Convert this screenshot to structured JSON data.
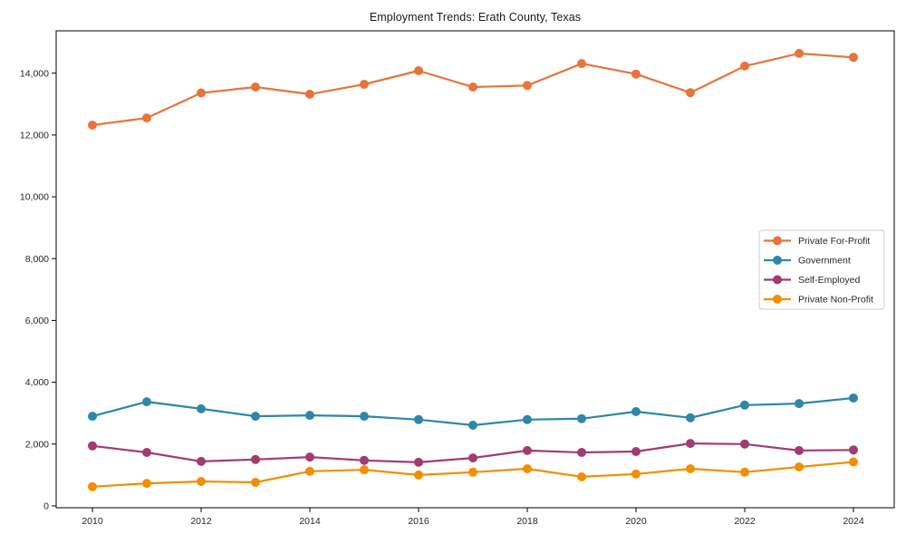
{
  "chart_data": {
    "type": "line",
    "title": "Employment Trends: Erath County, Texas",
    "xlabel": "",
    "ylabel": "",
    "grid": false,
    "background": "#ffffff",
    "axis_color": "#000000",
    "tick_label_color": "#262626",
    "x": [
      2010,
      2011,
      2012,
      2013,
      2014,
      2015,
      2016,
      2017,
      2018,
      2019,
      2020,
      2021,
      2022,
      2023,
      2024
    ],
    "xlim": [
      2009.333,
      2024.75
    ],
    "ylim": [
      -60,
      15370
    ],
    "xticks": [
      {
        "value": 2010,
        "label": "2010"
      },
      {
        "value": 2012,
        "label": "2012"
      },
      {
        "value": 2014,
        "label": "2014"
      },
      {
        "value": 2016,
        "label": "2016"
      },
      {
        "value": 2018,
        "label": "2018"
      },
      {
        "value": 2020,
        "label": "2020"
      },
      {
        "value": 2022,
        "label": "2022"
      },
      {
        "value": 2024,
        "label": "2024"
      }
    ],
    "yticks": [
      {
        "value": 0,
        "label": "0"
      },
      {
        "value": 2000,
        "label": "2,000"
      },
      {
        "value": 4000,
        "label": "4,000"
      },
      {
        "value": 6000,
        "label": "6,000"
      },
      {
        "value": 8000,
        "label": "8,000"
      },
      {
        "value": 10000,
        "label": "10,000"
      },
      {
        "value": 12000,
        "label": "12,000"
      },
      {
        "value": 14000,
        "label": "14,000"
      }
    ],
    "legend": {
      "position": "center-right",
      "border_color": "#cccccc",
      "background": "#ffffff",
      "text_color": "#1a1a1a"
    },
    "series": [
      {
        "name": "Private For-Profit",
        "color": "#E8743B",
        "marker": "circle",
        "values": [
          12320,
          12550,
          13360,
          13550,
          13320,
          13640,
          14080,
          13550,
          13600,
          14310,
          13970,
          13370,
          14230,
          14640,
          14510
        ]
      },
      {
        "name": "Government",
        "color": "#2E86AB",
        "marker": "circle",
        "values": [
          2900,
          3370,
          3140,
          2900,
          2930,
          2900,
          2790,
          2610,
          2790,
          2820,
          3050,
          2850,
          3260,
          3310,
          3490
        ]
      },
      {
        "name": "Self-Employed",
        "color": "#A23B72",
        "marker": "circle",
        "values": [
          1940,
          1730,
          1440,
          1500,
          1580,
          1470,
          1410,
          1550,
          1790,
          1730,
          1760,
          2020,
          2000,
          1790,
          1810
        ]
      },
      {
        "name": "Private Non-Profit",
        "color": "#F18F01",
        "marker": "circle",
        "values": [
          620,
          730,
          790,
          760,
          1120,
          1170,
          1000,
          1090,
          1200,
          940,
          1030,
          1200,
          1090,
          1260,
          1420
        ]
      }
    ]
  }
}
